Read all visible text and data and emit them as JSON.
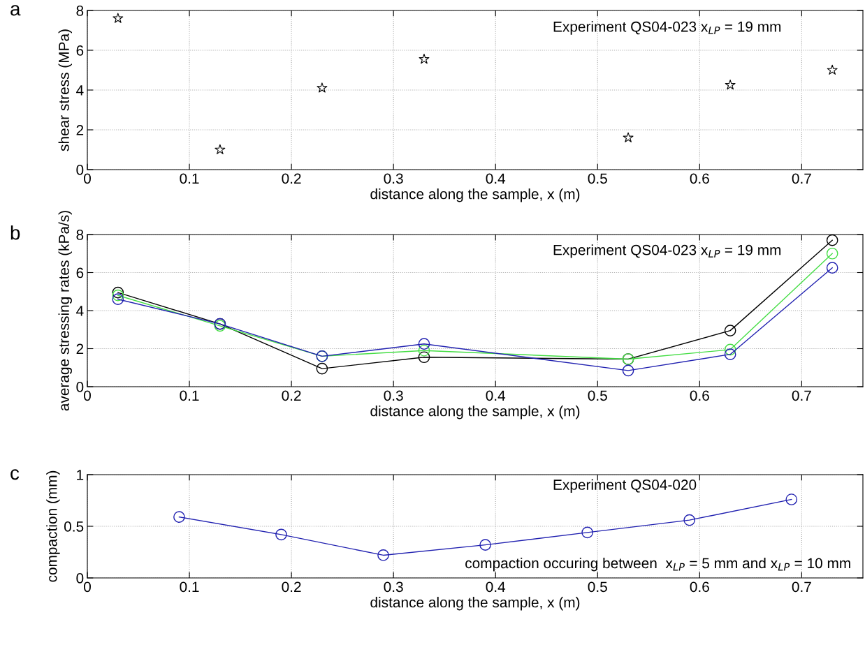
{
  "chart_data": [
    {
      "type": "scatter",
      "ylabel": "shear stress (MPa)",
      "xlabel": "distance along the sample, x (m)",
      "annotations": [
        "a",
        "Experiment QS04-023 x$_{LP}$ = 19 mm"
      ],
      "x": [
        0.03,
        0.13,
        0.23,
        0.33,
        0.53,
        0.63,
        0.73
      ],
      "series": [
        {
          "color": "#000000",
          "values": [
            7.6,
            1.0,
            4.1,
            5.55,
            1.6,
            4.25,
            5.0
          ]
        }
      ],
      "marker": "star",
      "xlim": [
        0,
        0.76
      ],
      "xticks": [
        0,
        0.1,
        0.2,
        0.3,
        0.4,
        0.5,
        0.6,
        0.7
      ],
      "ylim": [
        0,
        8
      ],
      "yticks": [
        0,
        2,
        4,
        6,
        8
      ],
      "grid": true
    },
    {
      "type": "line",
      "ylabel": "average stressing rates (kPa/s)",
      "xlabel": "distance along the sample, x (m)",
      "annotations": [
        "b",
        "Experiment QS04-023 x$_{LP}$ = 19 mm"
      ],
      "x": [
        0.03,
        0.13,
        0.23,
        0.33,
        0.53,
        0.63,
        0.73
      ],
      "series": [
        {
          "color": "#000000",
          "values": [
            4.95,
            3.3,
            0.95,
            1.55,
            1.45,
            2.95,
            7.7
          ]
        },
        {
          "color": "#44dd44",
          "values": [
            4.8,
            3.2,
            1.6,
            1.9,
            1.45,
            1.95,
            7.0
          ]
        },
        {
          "color": "#2020b0",
          "values": [
            4.6,
            3.3,
            1.6,
            2.25,
            0.85,
            1.7,
            6.25
          ]
        }
      ],
      "marker": "circle",
      "line_style": "solid",
      "xlim": [
        0,
        0.76
      ],
      "xticks": [
        0,
        0.1,
        0.2,
        0.3,
        0.4,
        0.5,
        0.6,
        0.7
      ],
      "ylim": [
        0,
        8
      ],
      "yticks": [
        0,
        2,
        4,
        6,
        8
      ],
      "grid": true
    },
    {
      "type": "line",
      "ylabel": "compaction (mm)",
      "xlabel": "distance along the sample, x (m)",
      "annotations": [
        "c",
        "Experiment QS04-020",
        "compaction occuring between  x$_{LP}$ = 5 mm and x$_{LP}$ = 10 mm"
      ],
      "x": [
        0.09,
        0.19,
        0.29,
        0.39,
        0.49,
        0.59,
        0.69
      ],
      "series": [
        {
          "color": "#2020b0",
          "values": [
            0.59,
            0.42,
            0.22,
            0.32,
            0.44,
            0.56,
            0.76
          ]
        }
      ],
      "marker": "circle",
      "line_style": "solid",
      "xlim": [
        0,
        0.76
      ],
      "xticks": [
        0,
        0.1,
        0.2,
        0.3,
        0.4,
        0.5,
        0.6,
        0.7
      ],
      "ylim": [
        0,
        1
      ],
      "yticks": [
        0,
        0.5,
        1
      ],
      "grid": true
    }
  ]
}
